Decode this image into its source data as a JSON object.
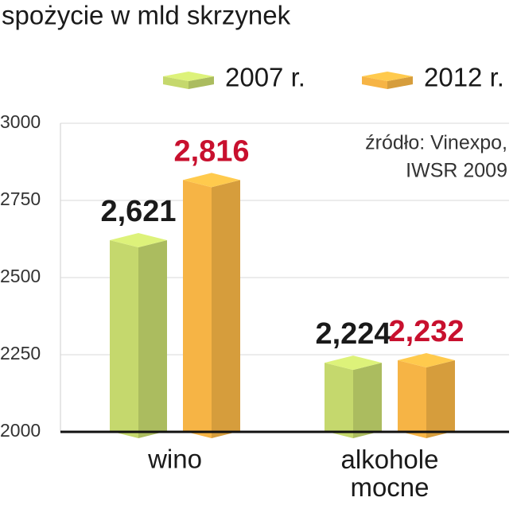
{
  "chart_data": {
    "type": "bar3d",
    "title": "spożycie w mld skrzynek",
    "source": [
      "źródło: Vinexpo,",
      "IWSR 2009"
    ],
    "categories": [
      "wino",
      "alkohole mocne"
    ],
    "series": [
      {
        "name": "2007 r.",
        "color": "#c5d86d",
        "label_color": "#1a1a1a",
        "values": [
          2621,
          2224
        ],
        "value_labels": [
          "2,621",
          "2,224"
        ]
      },
      {
        "name": "2012 r.",
        "color": "#f6b445",
        "label_color": "#c8102e",
        "values": [
          2816,
          2232
        ],
        "value_labels": [
          "2,816",
          "2,232"
        ]
      }
    ],
    "ylim": [
      2000,
      3000
    ],
    "yticks": [
      2000,
      2250,
      2500,
      2750,
      3000
    ],
    "grid": true
  }
}
